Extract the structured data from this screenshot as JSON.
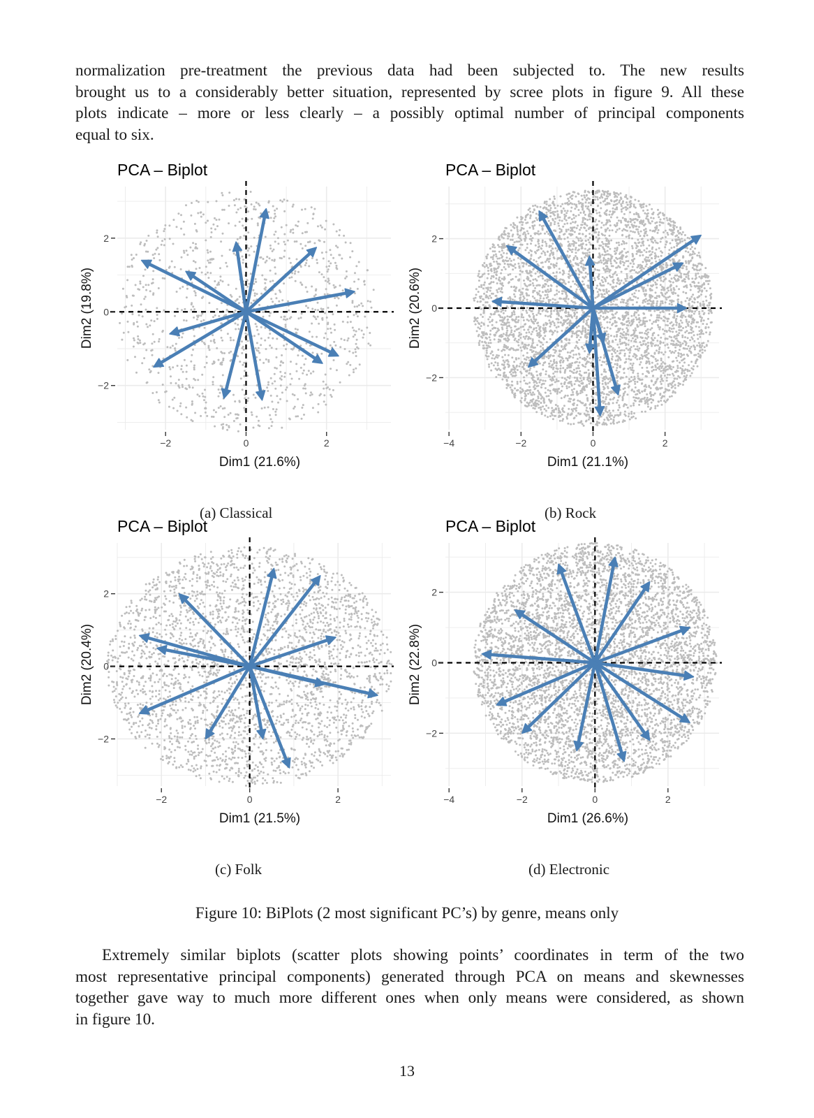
{
  "text": {
    "intro_lines": [
      "normalization pre-treatment the previous data had been subjected to.  The new results",
      "brought us to a considerably better situation, represented by scree plots in figure 9.  All these",
      "plots indicate – more or less clearly – a possibly optimal number of principal components",
      "equal to six."
    ],
    "outro_lines": [
      "Extremely similar biplots (scatter plots showing points’ coordinates in term of the two",
      "most representative principal components) generated through PCA on means and skewnesses",
      "together gave way to much more different ones when only means were considered, as shown",
      "in figure 10."
    ],
    "figure_caption": "Figure 10: BiPlots (2 most significant PC’s) by genre, means only",
    "page_number": "13"
  },
  "colors": {
    "arrow": "#4a7fb5",
    "points": "#bdbdbd",
    "grid": "#ebebeb"
  },
  "chart_data": [
    {
      "type": "scatter",
      "title": "PCA – Biplot",
      "subcaption": "(a) Classical",
      "xlabel": "Dim1 (21.6%)",
      "ylabel": "Dim2 (19.8%)",
      "xlim": [
        -3.2,
        3.6
      ],
      "ylim": [
        -3.2,
        3.4
      ],
      "xticks": [
        -2,
        0,
        2
      ],
      "yticks": [
        -2,
        0,
        2
      ],
      "point_density": "sparse",
      "point_count": 1200,
      "point_radius": 3.3,
      "arrows": [
        [
          0.5,
          2.8
        ],
        [
          -0.25,
          1.9
        ],
        [
          1.75,
          1.75
        ],
        [
          2.7,
          0.55
        ],
        [
          -2.6,
          1.4
        ],
        [
          -1.5,
          1.1
        ],
        [
          -1.9,
          -0.6
        ],
        [
          -2.3,
          -1.5
        ],
        [
          2.3,
          -1.2
        ],
        [
          1.9,
          -1.4
        ],
        [
          0.4,
          -2.4
        ],
        [
          -0.55,
          -2.35
        ]
      ],
      "grid": true
    },
    {
      "type": "scatter",
      "title": "PCA – Biplot",
      "subcaption": "(b) Rock",
      "xlabel": "Dim1 (21.1%)",
      "ylabel": "Dim2 (20.6%)",
      "xlim": [
        -4.1,
        3.5
      ],
      "ylim": [
        -3.5,
        3.5
      ],
      "xticks": [
        -4,
        -2,
        0,
        2
      ],
      "yticks": [
        -2,
        0,
        2
      ],
      "point_density": "dense",
      "point_count": 5000,
      "point_radius": 3.4,
      "arrows": [
        [
          -1.5,
          2.8
        ],
        [
          -2.4,
          1.8
        ],
        [
          3.0,
          2.1
        ],
        [
          2.5,
          1.3
        ],
        [
          2.6,
          0.0
        ],
        [
          -2.8,
          0.2
        ],
        [
          -0.1,
          1.5
        ],
        [
          -1.8,
          -1.7
        ],
        [
          -0.1,
          -1.3
        ],
        [
          0.3,
          -1.0
        ],
        [
          0.7,
          -2.5
        ],
        [
          0.2,
          -3.1
        ]
      ],
      "grid": true
    },
    {
      "type": "scatter",
      "title": "PCA – Biplot",
      "subcaption": "(c) Folk",
      "xlabel": "Dim1 (21.5%)",
      "ylabel": "Dim2 (20.4%)",
      "xlim": [
        -3.0,
        3.2
      ],
      "ylim": [
        -3.3,
        3.4
      ],
      "xticks": [
        -2,
        0,
        2
      ],
      "yticks": [
        -2,
        0,
        2
      ],
      "point_density": "medium",
      "point_count": 3000,
      "point_radius": 3.3,
      "arrows": [
        [
          0.55,
          2.7
        ],
        [
          1.6,
          2.5
        ],
        [
          -1.6,
          2.0
        ],
        [
          1.95,
          0.8
        ],
        [
          -2.5,
          0.85
        ],
        [
          -2.1,
          0.5
        ],
        [
          1.7,
          -0.5
        ],
        [
          2.9,
          -0.8
        ],
        [
          -2.5,
          -1.3
        ],
        [
          -1.0,
          -2.0
        ],
        [
          0.3,
          -2.0
        ],
        [
          0.9,
          -2.8
        ]
      ],
      "grid": true
    },
    {
      "type": "scatter",
      "title": "PCA – Biplot",
      "subcaption": "(d) Electronic",
      "xlabel": "Dim1 (26.6%)",
      "ylabel": "Dim2 (22.8%)",
      "xlim": [
        -4.1,
        3.4
      ],
      "ylim": [
        -3.5,
        3.4
      ],
      "xticks": [
        -4,
        -2,
        0,
        2
      ],
      "yticks": [
        -2,
        0,
        2
      ],
      "point_density": "dense",
      "point_count": 5000,
      "point_radius": 3.4,
      "arrows": [
        [
          0.55,
          3.0
        ],
        [
          -1.0,
          2.8
        ],
        [
          1.5,
          2.3
        ],
        [
          -2.2,
          1.5
        ],
        [
          2.6,
          1.0
        ],
        [
          -3.1,
          0.25
        ],
        [
          2.7,
          -0.4
        ],
        [
          -2.7,
          -1.2
        ],
        [
          2.6,
          -1.7
        ],
        [
          -2.0,
          -2.0
        ],
        [
          1.5,
          -2.2
        ],
        [
          -0.5,
          -2.5
        ],
        [
          0.8,
          -2.8
        ]
      ],
      "grid": true
    }
  ]
}
